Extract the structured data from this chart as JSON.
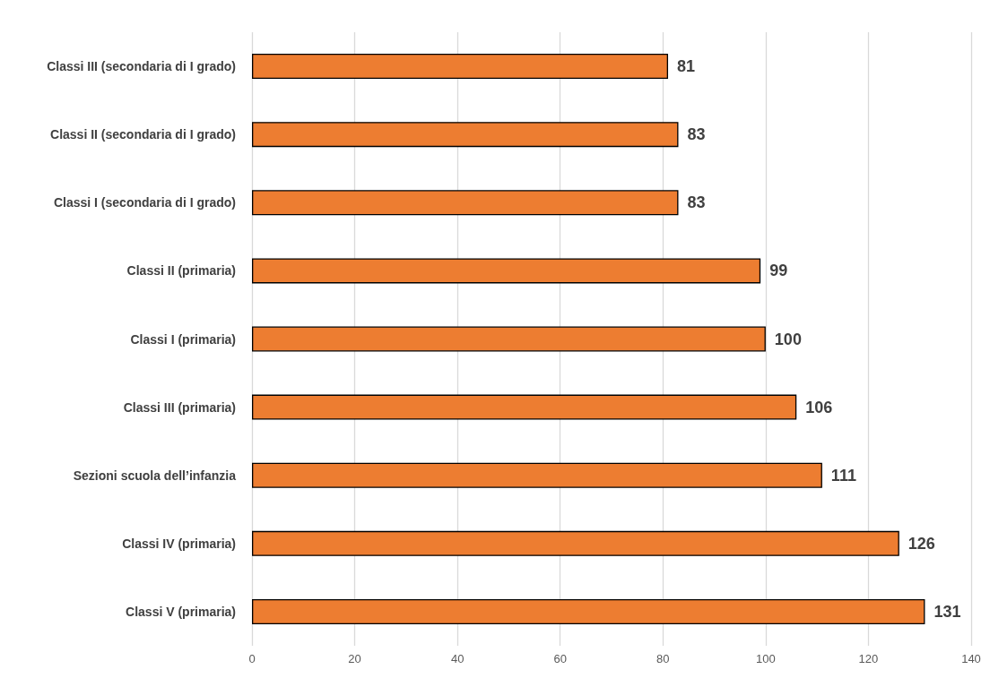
{
  "chart_data": {
    "type": "bar",
    "orientation": "horizontal",
    "categories": [
      "Classi III (secondaria di I grado)",
      "Classi II (secondaria di I grado)",
      "Classi I (secondaria di I grado)",
      "Classi II (primaria)",
      "Classi I (primaria)",
      "Classi III (primaria)",
      "Sezioni scuola dell’infanzia",
      "Classi IV (primaria)",
      "Classi V (primaria)"
    ],
    "values": [
      81,
      83,
      83,
      99,
      100,
      106,
      111,
      126,
      131
    ],
    "color": "#ed7d31",
    "xlim": [
      0,
      140
    ],
    "xticks": [
      0,
      20,
      40,
      60,
      80,
      100,
      120,
      140
    ],
    "grid": "x",
    "data_labels": true
  }
}
